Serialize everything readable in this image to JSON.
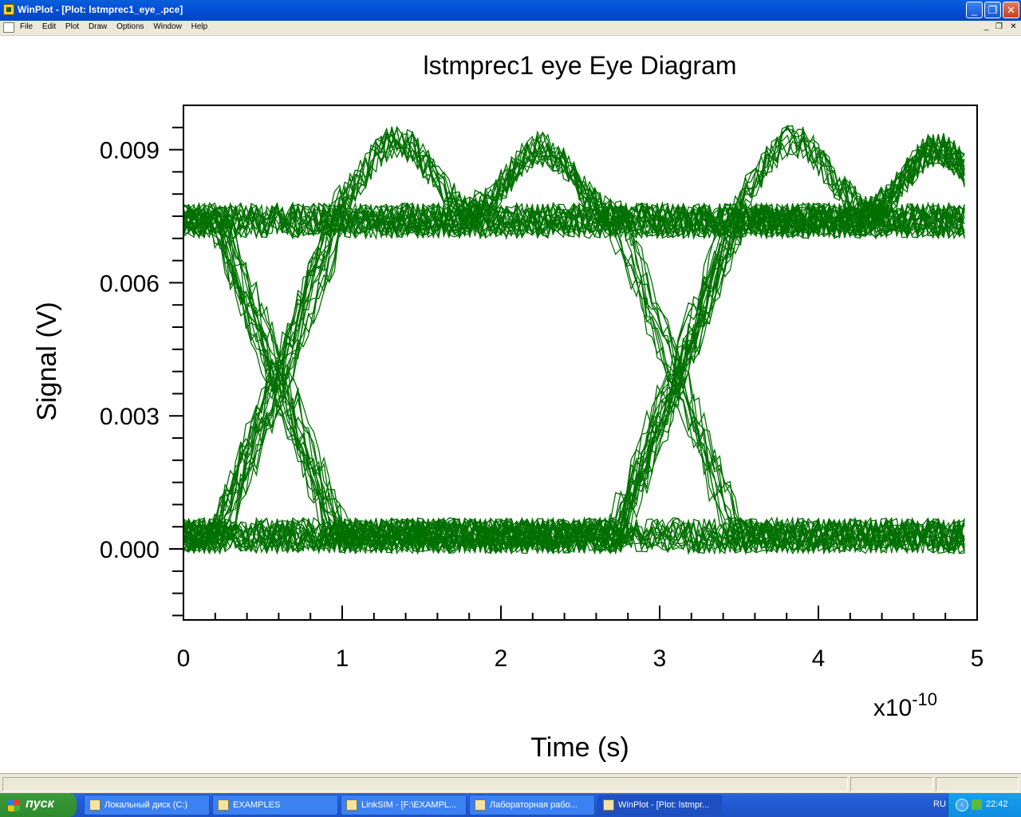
{
  "window": {
    "title": "WinPlot - [Plot: lstmprec1_eye_.pce]",
    "buttons": {
      "minimize": "_",
      "maximize": "❐",
      "close": "✕"
    }
  },
  "menubar": {
    "items": [
      "File",
      "Edit",
      "Plot",
      "Draw",
      "Options",
      "Window",
      "Help"
    ],
    "mdi_buttons": {
      "minimize": "_",
      "restore": "❐",
      "close": "✕"
    }
  },
  "chart_data": {
    "type": "line",
    "title": "lstmprec1 eye  Eye Diagram",
    "xlabel": "Time (s)",
    "ylabel": "Signal (V)",
    "x_multiplier": "x10",
    "x_multiplier_exp": "-10",
    "xlim": [
      0,
      5
    ],
    "ylim": [
      -0.0016,
      0.01
    ],
    "x_ticks": [
      0,
      1,
      2,
      3,
      4,
      5
    ],
    "x_tick_labels": [
      "0",
      "1",
      "2",
      "3",
      "4",
      "5"
    ],
    "y_ticks": [
      0.0,
      0.003,
      0.006,
      0.009
    ],
    "y_tick_labels": [
      "0.000",
      "0.003",
      "0.006",
      "0.009"
    ],
    "grid": false,
    "line_color": "#007000",
    "description_levels": {
      "low": 0.0003,
      "high": 0.0074,
      "overshoot": 0.0092
    },
    "sample_end": 4.92,
    "bit_period": 2.5,
    "crossing_times": [
      0.6,
      3.1
    ]
  },
  "statusbar": {
    "panels": [
      "",
      "",
      ""
    ]
  },
  "taskbar": {
    "start_label": "пуск",
    "tasks": [
      "Локальный диск (C:)",
      "EXAMPLES",
      "LinkSIM - [F:\\EXAMPL...",
      "Лабораторная рабо...",
      "WinPlot - [Plot: lstmpr..."
    ],
    "language": "RU",
    "clock": "22:42"
  }
}
